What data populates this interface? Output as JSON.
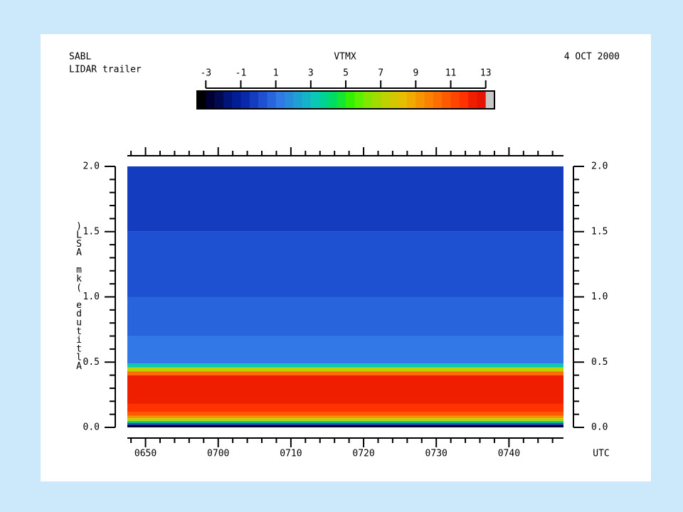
{
  "chart_data": {
    "type": "profile-heatmap",
    "title": "VTMX",
    "header_left": [
      "SABL",
      "LIDAR trailer"
    ],
    "header_right": "4 OCT 2000",
    "ylabel": "Altitude (km ASL)",
    "xlabel": "UTC",
    "ylim": [
      0,
      2
    ],
    "yticks": [
      {
        "value": 0,
        "label": "0.0"
      },
      {
        "value": 0.5,
        "label": "0.5"
      },
      {
        "value": 1,
        "label": "1.0"
      },
      {
        "value": 1.5,
        "label": "1.5"
      },
      {
        "value": 2,
        "label": "2.0"
      }
    ],
    "yminorticks": [
      0.1,
      0.2,
      0.3,
      0.4,
      0.6,
      0.7,
      0.8,
      0.9,
      1.1,
      1.2,
      1.3,
      1.4,
      1.6,
      1.7,
      1.8,
      1.9
    ],
    "xlim": [
      407.5,
      467.5
    ],
    "xticks": [
      {
        "value": 410,
        "label": "0650"
      },
      {
        "value": 420,
        "label": "0700"
      },
      {
        "value": 430,
        "label": "0710"
      },
      {
        "value": 440,
        "label": "0720"
      },
      {
        "value": 450,
        "label": "0730"
      },
      {
        "value": 460,
        "label": "0740"
      }
    ],
    "xminorticks": [
      408,
      412,
      414,
      416,
      418,
      422,
      424,
      426,
      428,
      432,
      434,
      436,
      438,
      442,
      444,
      446,
      448,
      452,
      454,
      456,
      458,
      462,
      464,
      466
    ],
    "heights": [
      0,
      0.02,
      0.035,
      0.05,
      0.07,
      0.09,
      0.12,
      0.18,
      0.4,
      0.43,
      0.46,
      0.49,
      0.7,
      1.0,
      1.5,
      2.0
    ],
    "values": [
      -3,
      0,
      4,
      7,
      9,
      10.5,
      11.5,
      12,
      10,
      7,
      3,
      1,
      0.5,
      0,
      -0.5
    ],
    "colorbar": {
      "clim": [
        -3.5,
        13.5
      ],
      "ticks": [
        -3,
        -1,
        1,
        3,
        5,
        7,
        9,
        11,
        13
      ],
      "colors": [
        "#000000",
        "#000033",
        "#000a50",
        "#00147a",
        "#001e96",
        "#0a28aa",
        "#143cbe",
        "#1e50d2",
        "#2864dc",
        "#3278e6",
        "#288cdc",
        "#1ea0d2",
        "#14b4c8",
        "#0ac8b4",
        "#00d296",
        "#00dc64",
        "#14e632",
        "#32f000",
        "#5af000",
        "#82e600",
        "#a0dc00",
        "#bed200",
        "#d2c800",
        "#e6be00",
        "#f0aa00",
        "#f59600",
        "#fa8200",
        "#ff6e00",
        "#ff5a00",
        "#ff4600",
        "#ff3200",
        "#f01e00",
        "#e61400",
        "#c8c8c8"
      ]
    }
  }
}
